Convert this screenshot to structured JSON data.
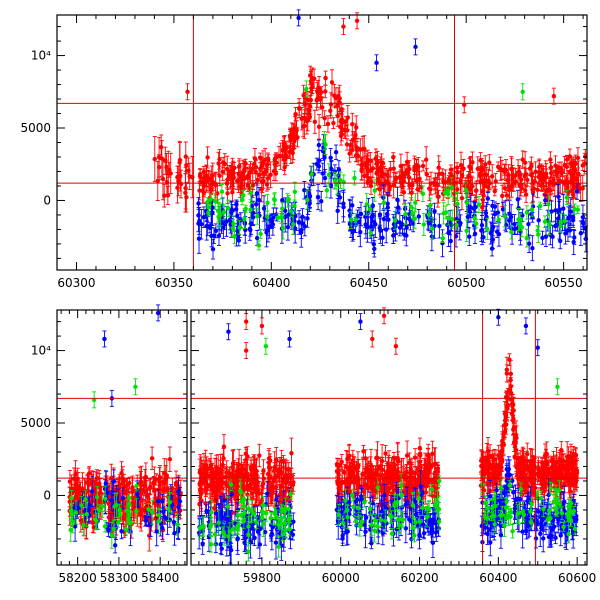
{
  "chart_data": [
    {
      "type": "scatter",
      "name": "top-panel",
      "title": "",
      "xlabel": "",
      "ylabel": "",
      "xlim": [
        60290,
        60562
      ],
      "ylim": [
        -4800,
        12800
      ],
      "xticks": [
        60300,
        60350,
        60400,
        60450,
        60500,
        60550
      ],
      "xtick_labels": [
        "60300",
        "60350",
        "60400",
        "60450",
        "60500",
        "60550"
      ],
      "yticks": [
        0,
        5000,
        10000
      ],
      "ytick_labels": [
        "0",
        "5000",
        "10⁴"
      ],
      "hlines": [
        1200,
        6700
      ],
      "vlines": [
        60360,
        60494
      ],
      "colors": {
        "red": "#ff0000",
        "green": "#00e000",
        "blue": "#0000ff"
      },
      "segments": [
        {
          "x0": 60340,
          "x1": 60360,
          "color": "red",
          "base": 1800,
          "amp": 1800,
          "count": 30,
          "err": 1200
        },
        {
          "x0": 60362,
          "x1": 60562,
          "color": "red",
          "base": 1500,
          "amp": 1200,
          "count": 520,
          "err": 700,
          "peak": {
            "x": 60426,
            "h": 6000,
            "w": 12
          }
        },
        {
          "x0": 60362,
          "x1": 60562,
          "color": "blue",
          "base": -1500,
          "amp": 1400,
          "count": 300,
          "err": 800,
          "peak": {
            "x": 60428,
            "h": 4500,
            "w": 6
          }
        },
        {
          "x0": 60362,
          "x1": 60562,
          "color": "green",
          "base": -800,
          "amp": 1600,
          "count": 110,
          "err": 600,
          "peak": {
            "x": 60428,
            "h": 3500,
            "w": 8
          }
        }
      ],
      "outliers": [
        {
          "x": 60357,
          "y": 7500,
          "color": "red"
        },
        {
          "x": 60414,
          "y": 12600,
          "color": "blue"
        },
        {
          "x": 60437,
          "y": 12000,
          "color": "red"
        },
        {
          "x": 60444,
          "y": 12400,
          "color": "red"
        },
        {
          "x": 60454,
          "y": 9500,
          "color": "blue"
        },
        {
          "x": 60474,
          "y": 10600,
          "color": "blue"
        },
        {
          "x": 60418,
          "y": 7700,
          "color": "green"
        },
        {
          "x": 60529,
          "y": 7500,
          "color": "green"
        },
        {
          "x": 60499,
          "y": 6600,
          "color": "red"
        },
        {
          "x": 60545,
          "y": 7200,
          "color": "red"
        }
      ]
    },
    {
      "type": "scatter",
      "name": "bottom-panel",
      "title": "",
      "xlabel": "",
      "ylabel": "",
      "broken_x": true,
      "sections": [
        {
          "xlim": [
            58150,
            58465
          ],
          "xticks": [
            58200,
            58300,
            58400
          ],
          "xtick_labels": [
            "58200",
            "58300",
            "58400"
          ]
        },
        {
          "xlim": [
            59620,
            60625
          ],
          "xticks": [
            59800,
            60000,
            60200,
            60400,
            60600
          ],
          "xtick_labels": [
            "59800",
            "60000",
            "60200",
            "60400",
            "60600"
          ]
        }
      ],
      "ylim": [
        -4800,
        12800
      ],
      "yticks": [
        0,
        5000,
        10000
      ],
      "ytick_labels": [
        "0",
        "5000",
        "10⁴"
      ],
      "hlines": [
        1200,
        6700
      ],
      "vlines": [
        60360,
        60494
      ],
      "segments": [
        {
          "section": 0,
          "x0": 58180,
          "x1": 58450,
          "color": "red",
          "base": -300,
          "amp": 1800,
          "count": 260,
          "err": 900
        },
        {
          "section": 0,
          "x0": 58180,
          "x1": 58450,
          "color": "blue",
          "base": -800,
          "amp": 1600,
          "count": 60,
          "err": 800
        },
        {
          "section": 0,
          "x0": 58180,
          "x1": 58450,
          "color": "green",
          "base": -1200,
          "amp": 1800,
          "count": 40,
          "err": 700
        },
        {
          "section": 1,
          "x0": 59640,
          "x1": 59880,
          "color": "red",
          "base": 1000,
          "amp": 1600,
          "count": 240,
          "err": 900
        },
        {
          "section": 1,
          "x0": 59640,
          "x1": 59880,
          "color": "blue",
          "base": -2000,
          "amp": 1600,
          "count": 110,
          "err": 900
        },
        {
          "section": 1,
          "x0": 59640,
          "x1": 59880,
          "color": "green",
          "base": -1500,
          "amp": 2000,
          "count": 60,
          "err": 700
        },
        {
          "section": 1,
          "x0": 59990,
          "x1": 60250,
          "color": "red",
          "base": 1200,
          "amp": 1500,
          "count": 260,
          "err": 900
        },
        {
          "section": 1,
          "x0": 59990,
          "x1": 60250,
          "color": "blue",
          "base": -1500,
          "amp": 1500,
          "count": 120,
          "err": 900
        },
        {
          "section": 1,
          "x0": 59990,
          "x1": 60250,
          "color": "green",
          "base": -1000,
          "amp": 1800,
          "count": 50,
          "err": 700
        },
        {
          "section": 1,
          "x0": 60355,
          "x1": 60600,
          "color": "red",
          "base": 1600,
          "amp": 1300,
          "count": 320,
          "err": 800,
          "peak": {
            "x": 60428,
            "h": 6500,
            "w": 10
          }
        },
        {
          "section": 1,
          "x0": 60355,
          "x1": 60600,
          "color": "blue",
          "base": -1500,
          "amp": 1400,
          "count": 160,
          "err": 900,
          "peak": {
            "x": 60428,
            "h": 4500,
            "w": 6
          }
        },
        {
          "section": 1,
          "x0": 60355,
          "x1": 60600,
          "color": "green",
          "base": -800,
          "amp": 1600,
          "count": 60,
          "err": 600
        }
      ],
      "outliers": [
        {
          "section": 0,
          "x": 58265,
          "y": 10800,
          "color": "blue"
        },
        {
          "section": 0,
          "x": 58395,
          "y": 12600,
          "color": "blue"
        },
        {
          "section": 0,
          "x": 58283,
          "y": 6700,
          "color": "blue"
        },
        {
          "section": 0,
          "x": 58340,
          "y": 7500,
          "color": "green"
        },
        {
          "section": 0,
          "x": 58240,
          "y": 6600,
          "color": "green"
        },
        {
          "section": 1,
          "x": 59715,
          "y": 11300,
          "color": "blue"
        },
        {
          "section": 1,
          "x": 59760,
          "y": 12000,
          "color": "red"
        },
        {
          "section": 1,
          "x": 59800,
          "y": 11700,
          "color": "red"
        },
        {
          "section": 1,
          "x": 59760,
          "y": 10000,
          "color": "red"
        },
        {
          "section": 1,
          "x": 59810,
          "y": 10300,
          "color": "green"
        },
        {
          "section": 1,
          "x": 59870,
          "y": 10800,
          "color": "blue"
        },
        {
          "section": 1,
          "x": 60050,
          "y": 12000,
          "color": "blue"
        },
        {
          "section": 1,
          "x": 60080,
          "y": 10800,
          "color": "red"
        },
        {
          "section": 1,
          "x": 60110,
          "y": 12400,
          "color": "red"
        },
        {
          "section": 1,
          "x": 60140,
          "y": 10300,
          "color": "red"
        },
        {
          "section": 1,
          "x": 60400,
          "y": 12300,
          "color": "blue"
        },
        {
          "section": 1,
          "x": 60470,
          "y": 11700,
          "color": "blue"
        },
        {
          "section": 1,
          "x": 60500,
          "y": 10200,
          "color": "blue"
        },
        {
          "section": 1,
          "x": 60550,
          "y": 7500,
          "color": "green"
        }
      ]
    }
  ]
}
